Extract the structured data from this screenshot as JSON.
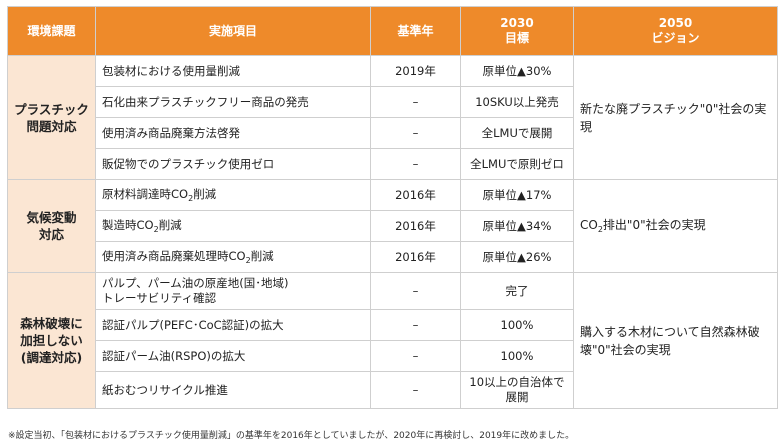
{
  "header": {
    "col1": "環境課題",
    "col2": "実施項目",
    "col3": "基準年",
    "col4_line1": "2030",
    "col4_line2": "目標",
    "col5_line1": "2050",
    "col5_line2": "ビジョン"
  },
  "sections": [
    {
      "category": [
        "プラスチック",
        "問題対応"
      ],
      "vision": "新たな廃プラスチック\"0\"社会の実現",
      "rows": [
        {
          "item": "包装材における使用量削減",
          "base_year": "2019年",
          "target": "原単位▲30%"
        },
        {
          "item": "石化由来プラスチックフリー商品の発売",
          "base_year": "–",
          "target": "10SKU以上発売"
        },
        {
          "item": "使用済み商品廃棄方法啓発",
          "base_year": "–",
          "target": "全LMUで展開"
        },
        {
          "item": "販促物でのプラスチック使用ゼロ",
          "base_year": "–",
          "target": "全LMUで原則ゼロ"
        }
      ]
    },
    {
      "category": [
        "気候変動",
        "対応"
      ],
      "vision_pre": "CO",
      "vision_sub": "2",
      "vision_post": "排出\"0\"社会の実現",
      "rows": [
        {
          "item_pre": "原材料調達時CO",
          "item_sub": "2",
          "item_post": "削減",
          "base_year": "2016年",
          "target": "原単位▲17%"
        },
        {
          "item_pre": "製造時CO",
          "item_sub": "2",
          "item_post": "削減",
          "base_year": "2016年",
          "target": "原単位▲34%"
        },
        {
          "item_pre": "使用済み商品廃棄処理時CO",
          "item_sub": "2",
          "item_post": "削減",
          "base_year": "2016年",
          "target": "原単位▲26%"
        }
      ]
    },
    {
      "category": [
        "森林破壊に",
        "加担しない",
        "(調達対応)"
      ],
      "vision": "購入する木材について自然森林破壊\"0\"社会の実現",
      "rows": [
        {
          "item_line1": "パルプ、パーム油の原産地(国･地域)",
          "item_line2": "トレーサビリティ確認",
          "base_year": "–",
          "target": "完了"
        },
        {
          "item": "認証パルプ(PEFC･CoC認証)の拡大",
          "base_year": "–",
          "target": "100%"
        },
        {
          "item": "認証パーム油(RSPO)の拡大",
          "base_year": "–",
          "target": "100%"
        },
        {
          "item": "紙おむつリサイクル推進",
          "base_year": "–",
          "target_line1": "10以上の自治体で",
          "target_line2": "展開"
        }
      ]
    }
  ],
  "footnote": "※設定当初、「包装材におけるプラスチック使用量削減」の基準年を2016年としていましたが、2020年に再検討し、2019年に改めました。"
}
